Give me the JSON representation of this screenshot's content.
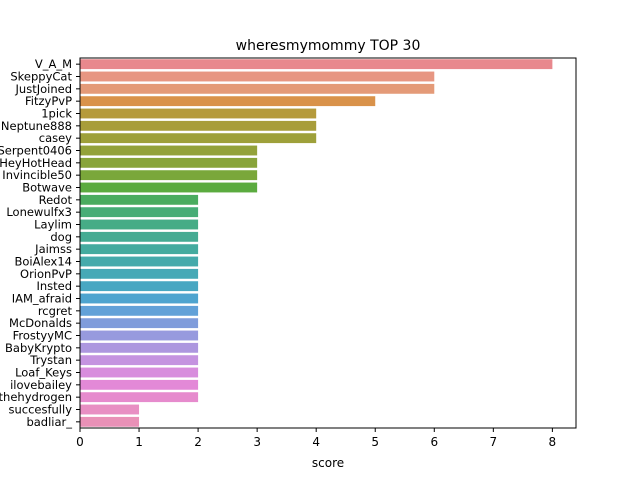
{
  "chart_data": {
    "type": "bar",
    "orientation": "horizontal",
    "title": "wheresmymommy TOP 30",
    "xlabel": "score",
    "ylabel": "",
    "xlim": [
      0,
      8.4
    ],
    "xticks": [
      0,
      1,
      2,
      3,
      4,
      5,
      6,
      7,
      8
    ],
    "grid": false,
    "legend": "none",
    "categories": [
      "V_A_M",
      "SkeppyCat",
      "JustJoined",
      "FitzyPvP",
      "1pick",
      "Neptune888",
      "casey",
      "Serpent0406",
      "HeyHotHead",
      "Invincible50",
      "Botwave",
      "Redot",
      "Lonewulfx3",
      "Laylim",
      "dog",
      "Jaimss",
      "BoiAlex14",
      "OrionPvP",
      "Insted",
      "IAM_afraid",
      "rcgret",
      "McDonalds",
      "FrostyyMC",
      "BabyKrypto",
      "Trystan",
      "Loaf_Keys",
      "ilovebailey",
      "thehydrogen",
      "succesfully",
      "badliar_"
    ],
    "values": [
      8,
      6,
      6,
      5,
      4,
      4,
      4,
      3,
      3,
      3,
      3,
      2,
      2,
      2,
      2,
      2,
      2,
      2,
      2,
      2,
      2,
      2,
      2,
      2,
      2,
      2,
      2,
      2,
      1,
      1
    ],
    "colors": [
      "#e8888d",
      "#e79682",
      "#e49a78",
      "#d9924a",
      "#b59a3b",
      "#a89d3a",
      "#9ea03a",
      "#93a23a",
      "#88a43a",
      "#7aa73a",
      "#5bab3f",
      "#4aac5f",
      "#47ad76",
      "#46ac86",
      "#45ab93",
      "#44ab9f",
      "#45aaab",
      "#46a9b6",
      "#48a7c2",
      "#4ea4cf",
      "#62a1d8",
      "#7f9cdb",
      "#979ade",
      "#ad97df",
      "#c593e0",
      "#d88ddd",
      "#e389d7",
      "#e68bcd",
      "#e88fc3",
      "#e991b7"
    ]
  }
}
